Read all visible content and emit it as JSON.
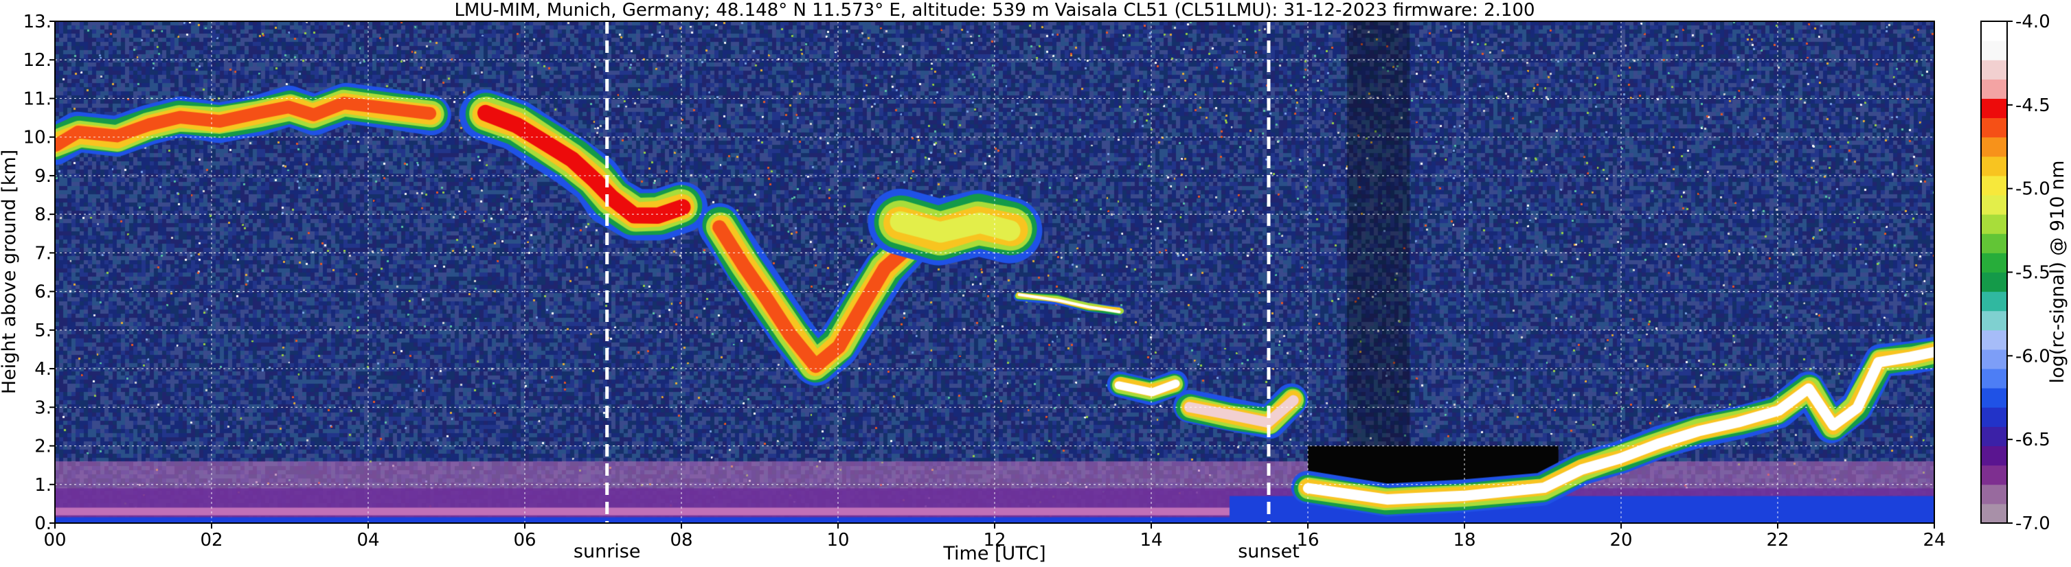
{
  "chart_data": {
    "type": "heatmap",
    "title": "LMU-MIM, Munich, Germany; 48.148° N 11.573° E, altitude: 539 m    Vaisala CL51 (CL51LMU): 31-12-2023    firmware: 2.100",
    "xlabel": "Time [UTC]",
    "ylabel": "Height above ground [km]",
    "colorbar_label": "log(rc-signal) @ 910 nm",
    "xlim": [
      0,
      24
    ],
    "ylim": [
      0,
      13
    ],
    "x_ticks": [
      {
        "value": 0,
        "label": "00"
      },
      {
        "value": 2,
        "label": "02"
      },
      {
        "value": 4,
        "label": "04"
      },
      {
        "value": 6,
        "label": "06"
      },
      {
        "value": 8,
        "label": "08"
      },
      {
        "value": 10,
        "label": "10"
      },
      {
        "value": 12,
        "label": "12"
      },
      {
        "value": 14,
        "label": "14"
      },
      {
        "value": 16,
        "label": "16"
      },
      {
        "value": 18,
        "label": "18"
      },
      {
        "value": 20,
        "label": "20"
      },
      {
        "value": 22,
        "label": "22"
      },
      {
        "value": 24,
        "label": "24"
      }
    ],
    "y_ticks": [
      {
        "value": 0,
        "label": "0."
      },
      {
        "value": 1,
        "label": "1."
      },
      {
        "value": 2,
        "label": "2."
      },
      {
        "value": 3,
        "label": "3."
      },
      {
        "value": 4,
        "label": "4."
      },
      {
        "value": 5,
        "label": "5."
      },
      {
        "value": 6,
        "label": "6."
      },
      {
        "value": 7,
        "label": "7."
      },
      {
        "value": 8,
        "label": "8."
      },
      {
        "value": 9,
        "label": "9."
      },
      {
        "value": 10,
        "label": "10."
      },
      {
        "value": 11,
        "label": "11."
      },
      {
        "value": 12,
        "label": "12."
      },
      {
        "value": 13,
        "label": "13."
      }
    ],
    "grid": true,
    "markers": [
      {
        "label": "sunrise",
        "time": 7.05
      },
      {
        "label": "sunset",
        "time": 15.5
      }
    ],
    "colorbar": {
      "range": [
        -7.0,
        -4.0
      ],
      "ticks": [
        {
          "value": -4.0,
          "label": "-4.0"
        },
        {
          "value": -4.5,
          "label": "-4.5"
        },
        {
          "value": -5.0,
          "label": "-5.0"
        },
        {
          "value": -5.5,
          "label": "-5.5"
        },
        {
          "value": -6.0,
          "label": "-6.0"
        },
        {
          "value": -6.5,
          "label": "-6.5"
        },
        {
          "value": -7.0,
          "label": "-7.0"
        }
      ],
      "colors_bottom_to_top": [
        "#a890a8",
        "#986a9e",
        "#7e2f90",
        "#5a1590",
        "#3b21a7",
        "#2233c8",
        "#1f52e6",
        "#4d7ef5",
        "#7d9ef7",
        "#a6bcf8",
        "#7fd0d0",
        "#30b8a0",
        "#149a49",
        "#27ad3a",
        "#62c536",
        "#a8dd3a",
        "#e3ee4a",
        "#f7e83b",
        "#f8c420",
        "#f7921a",
        "#f55016",
        "#ed0b0b",
        "#f3a3a3",
        "#f2d0d0",
        "#f8f8f8",
        "#ffffff"
      ]
    },
    "noise_field": {
      "low": [
        "#172978",
        "#22358a",
        "#2a5088",
        "#20256e",
        "#3a4a8c",
        "#15306a"
      ],
      "speckle": [
        "#ffffff",
        "#d8d8d8",
        "#9ad24a",
        "#5ec4a8",
        "#e8b03a",
        "#e85a2a",
        "#7fa7e8"
      ]
    },
    "layers": {
      "surface_bottom": "#1b41dc",
      "surface_pink": "#c070b8",
      "surface_purple": "#6a2a9a",
      "night_black": "#050505"
    },
    "cloud_features": [
      {
        "name": "cirrus-early",
        "points": [
          [
            0.0,
            9.8
          ],
          [
            0.3,
            10.1
          ],
          [
            0.8,
            10.0
          ],
          [
            1.2,
            10.3
          ],
          [
            1.6,
            10.5
          ],
          [
            2.1,
            10.4
          ],
          [
            2.6,
            10.6
          ],
          [
            3.0,
            10.8
          ],
          [
            3.3,
            10.6
          ],
          [
            3.7,
            10.9
          ],
          [
            4.3,
            10.7
          ],
          [
            4.8,
            10.6
          ]
        ],
        "level": -4.6,
        "width": 0.55
      },
      {
        "name": "cirrus-band-a",
        "points": [
          [
            5.5,
            10.6
          ],
          [
            5.9,
            10.3
          ],
          [
            6.3,
            9.8
          ],
          [
            6.6,
            9.4
          ],
          [
            6.9,
            8.9
          ],
          [
            7.1,
            8.4
          ],
          [
            7.4,
            8.0
          ],
          [
            7.7,
            8.0
          ],
          [
            8.0,
            8.2
          ]
        ],
        "level": -4.5,
        "width": 0.7
      },
      {
        "name": "cirrus-v",
        "points": [
          [
            8.5,
            7.7
          ],
          [
            8.8,
            6.7
          ],
          [
            9.1,
            5.8
          ],
          [
            9.4,
            4.9
          ],
          [
            9.7,
            4.1
          ],
          [
            10.0,
            4.6
          ],
          [
            10.3,
            5.6
          ],
          [
            10.6,
            6.6
          ],
          [
            10.9,
            7.2
          ]
        ],
        "level": -4.6,
        "width": 0.6
      },
      {
        "name": "cirrus-fallstreaks",
        "points": [
          [
            10.8,
            7.8
          ],
          [
            11.3,
            7.5
          ],
          [
            11.8,
            7.8
          ],
          [
            12.2,
            7.6
          ]
        ],
        "level": -5.1,
        "width": 0.9
      },
      {
        "name": "mid-cloud-a",
        "points": [
          [
            12.3,
            5.9
          ],
          [
            12.8,
            5.8
          ],
          [
            13.2,
            5.6
          ],
          [
            13.6,
            5.5
          ]
        ],
        "level": -4.1,
        "width": 0.12
      },
      {
        "name": "mid-cloud-b",
        "points": [
          [
            13.6,
            3.6
          ],
          [
            14.0,
            3.4
          ],
          [
            14.3,
            3.6
          ]
        ],
        "level": -4.1,
        "width": 0.35
      },
      {
        "name": "mid-cloud-c",
        "points": [
          [
            14.5,
            3.0
          ],
          [
            15.0,
            2.8
          ],
          [
            15.5,
            2.6
          ],
          [
            15.8,
            3.2
          ]
        ],
        "level": -4.3,
        "width": 0.45
      },
      {
        "name": "low-cloud-evening",
        "points": [
          [
            16.0,
            0.9
          ],
          [
            17.0,
            0.6
          ],
          [
            18.0,
            0.7
          ],
          [
            19.0,
            0.9
          ],
          [
            19.5,
            1.4
          ],
          [
            20.0,
            1.7
          ],
          [
            20.5,
            2.1
          ],
          [
            21.0,
            2.4
          ],
          [
            21.5,
            2.6
          ],
          [
            22.0,
            2.9
          ],
          [
            22.4,
            3.5
          ],
          [
            22.7,
            2.5
          ],
          [
            23.0,
            3.0
          ],
          [
            23.3,
            4.2
          ],
          [
            23.7,
            4.3
          ],
          [
            24.0,
            4.4
          ]
        ],
        "level": -4.1,
        "width": 0.45
      }
    ]
  }
}
